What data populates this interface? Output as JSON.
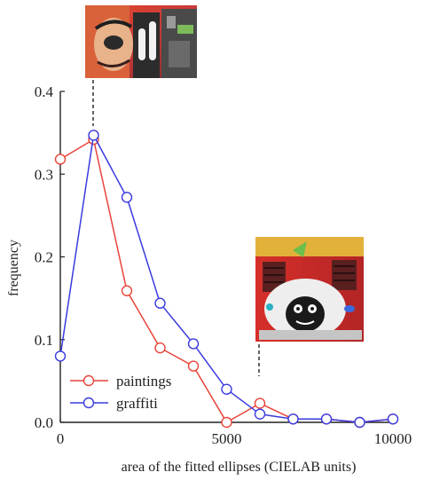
{
  "chart_data": {
    "type": "line",
    "title": "",
    "xlabel": "area of the fitted ellipses (CIELAB units)",
    "ylabel": "frequency",
    "xlim": [
      0,
      10000
    ],
    "ylim": [
      0,
      0.4
    ],
    "xticks": [
      0,
      5000,
      10000
    ],
    "xtick_labels": [
      "0",
      "5000",
      "10000"
    ],
    "yticks": [
      0,
      0.1,
      0.2,
      0.3,
      0.4
    ],
    "ytick_labels": [
      "0.0",
      "0.1",
      "0.2",
      "0.3",
      "0.4"
    ],
    "grid": false,
    "legend_position": "bottom-left",
    "marker": "open-circle",
    "series": [
      {
        "name": "paintings",
        "color": "#e8443a",
        "x": [
          0,
          1000,
          2000,
          3000,
          4000,
          5000,
          6000,
          7000,
          8000,
          9000,
          10000
        ],
        "y": [
          0.318,
          0.342,
          0.159,
          0.09,
          0.068,
          0.0,
          0.023,
          0.004,
          0.004,
          0.0,
          0.004
        ]
      },
      {
        "name": "graffiti",
        "color": "#3a3ae0",
        "x": [
          0,
          1000,
          2000,
          3000,
          4000,
          5000,
          6000,
          7000,
          8000,
          9000,
          10000
        ],
        "y": [
          0.08,
          0.347,
          0.272,
          0.144,
          0.095,
          0.04,
          0.01,
          0.004,
          0.004,
          0.0,
          0.004
        ]
      }
    ],
    "annotations": [
      {
        "name": "inset-graffiti-face",
        "x": 1000,
        "kind": "dashed-line-to-image"
      },
      {
        "name": "inset-monkey-painting",
        "x": 6000,
        "kind": "dashed-line-to-image"
      }
    ]
  }
}
